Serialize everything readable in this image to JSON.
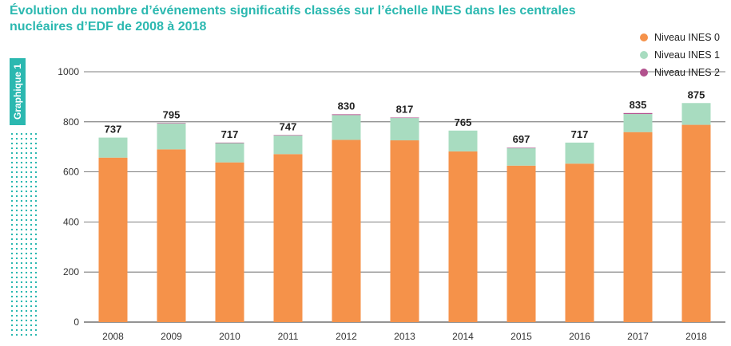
{
  "title": "Évolution du nombre d’événements significatifs classés sur l’échelle INES dans les centrales nucléaires d’EDF de 2008 à 2018",
  "side_label": "Graphique 1",
  "colors": {
    "ines0": "#f5924a",
    "ines1": "#a8dcc0",
    "ines2": "#b2528e",
    "accent": "#2bb8b0",
    "grid": "#555555"
  },
  "chart_data": {
    "type": "bar",
    "stacked": true,
    "title": "Évolution du nombre d’événements significatifs classés sur l’échelle INES dans les centrales nucléaires d’EDF de 2008 à 2018",
    "categories": [
      "2008",
      "2009",
      "2010",
      "2011",
      "2012",
      "2013",
      "2014",
      "2015",
      "2016",
      "2017",
      "2018"
    ],
    "series": [
      {
        "name": "Niveau INES 0",
        "values": [
          657,
          690,
          638,
          671,
          728,
          726,
          682,
          625,
          633,
          759,
          788
        ]
      },
      {
        "name": "Niveau INES 1",
        "values": [
          80,
          103,
          77,
          74,
          99,
          89,
          83,
          70,
          84,
          72,
          87
        ]
      },
      {
        "name": "Niveau INES 2",
        "values": [
          0,
          2,
          2,
          2,
          3,
          2,
          0,
          2,
          0,
          4,
          0
        ]
      }
    ],
    "totals": [
      737,
      795,
      717,
      747,
      830,
      817,
      765,
      697,
      717,
      835,
      875
    ],
    "ylim": [
      0,
      1000
    ],
    "yticks": [
      0,
      200,
      400,
      600,
      800,
      1000
    ],
    "xlabel": "",
    "ylabel": "",
    "grid": true,
    "legend_position": "top-right"
  }
}
